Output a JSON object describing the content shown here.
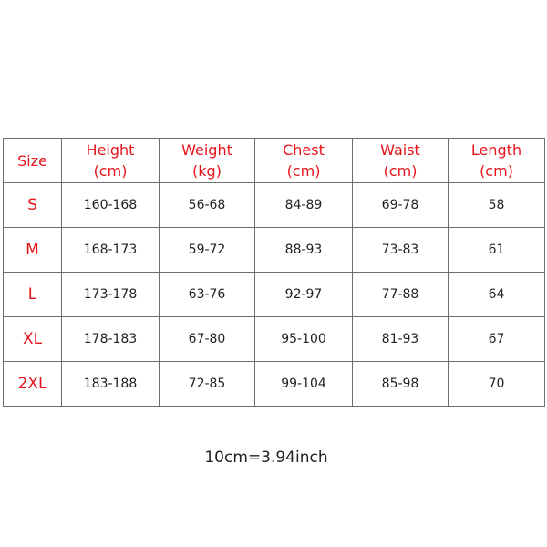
{
  "table": {
    "headers": [
      {
        "line1": "Size",
        "line2": ""
      },
      {
        "line1": "Height",
        "line2": "(cm)"
      },
      {
        "line1": "Weight",
        "line2": "(kg)"
      },
      {
        "line1": "Chest",
        "line2": "(cm)"
      },
      {
        "line1": "Waist",
        "line2": "(cm)"
      },
      {
        "line1": "Length",
        "line2": "(cm)"
      }
    ],
    "rows": [
      [
        "S",
        "160-168",
        "56-68",
        "84-89",
        "69-78",
        "58"
      ],
      [
        "M",
        "168-173",
        "59-72",
        "88-93",
        "73-83",
        "61"
      ],
      [
        "L",
        "173-178",
        "63-76",
        "92-97",
        "77-88",
        "64"
      ],
      [
        "XL",
        "178-183",
        "67-80",
        "95-100",
        "81-93",
        "67"
      ],
      [
        "2XL",
        "183-188",
        "72-85",
        "99-104",
        "85-98",
        "70"
      ]
    ]
  },
  "note": "10cm=3.94inch",
  "colors": {
    "header": "#e8141c",
    "text": "#222222",
    "border": "#6e6e6e"
  }
}
